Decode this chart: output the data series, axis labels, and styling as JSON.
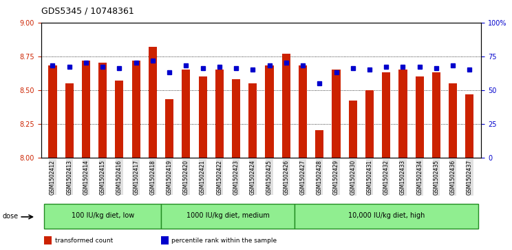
{
  "title": "GDS5345 / 10748361",
  "samples": [
    "GSM1502412",
    "GSM1502413",
    "GSM1502414",
    "GSM1502415",
    "GSM1502416",
    "GSM1502417",
    "GSM1502418",
    "GSM1502419",
    "GSM1502420",
    "GSM1502421",
    "GSM1502422",
    "GSM1502423",
    "GSM1502424",
    "GSM1502425",
    "GSM1502426",
    "GSM1502427",
    "GSM1502428",
    "GSM1502429",
    "GSM1502430",
    "GSM1502431",
    "GSM1502432",
    "GSM1502433",
    "GSM1502434",
    "GSM1502435",
    "GSM1502436",
    "GSM1502437"
  ],
  "bar_values": [
    8.68,
    8.55,
    8.72,
    8.7,
    8.57,
    8.72,
    8.82,
    8.43,
    8.65,
    8.6,
    8.65,
    8.58,
    8.55,
    8.68,
    8.77,
    8.68,
    8.2,
    8.65,
    8.42,
    8.5,
    8.63,
    8.65,
    8.6,
    8.63,
    8.55,
    8.47
  ],
  "percentile_values": [
    68,
    67,
    70,
    67,
    66,
    70,
    72,
    63,
    68,
    66,
    67,
    66,
    65,
    68,
    70,
    68,
    55,
    63,
    66,
    65,
    67,
    67,
    67,
    66,
    68,
    65
  ],
  "groups": [
    {
      "label": "100 IU/kg diet, low",
      "start": 0,
      "end": 7
    },
    {
      "label": "1000 IU/kg diet, medium",
      "start": 7,
      "end": 15
    },
    {
      "label": "10,000 IU/kg diet, high",
      "start": 15,
      "end": 26
    }
  ],
  "ylim_left": [
    8.0,
    9.0
  ],
  "ylim_right": [
    0,
    100
  ],
  "yticks_left": [
    8.0,
    8.25,
    8.5,
    8.75,
    9.0
  ],
  "yticks_right": [
    0,
    25,
    50,
    75,
    100
  ],
  "bar_color": "#CC2200",
  "dot_color": "#0000CC",
  "background_color": "#FFFFFF",
  "plot_bg_color": "#FFFFFF",
  "dose_label": "dose",
  "legend_items": [
    {
      "label": "transformed count",
      "color": "#CC2200"
    },
    {
      "label": "percentile rank within the sample",
      "color": "#0000CC"
    }
  ],
  "group_bg_color": "#90EE90",
  "group_border_color": "#228B22",
  "tick_label_bg": "#E8E8E8"
}
